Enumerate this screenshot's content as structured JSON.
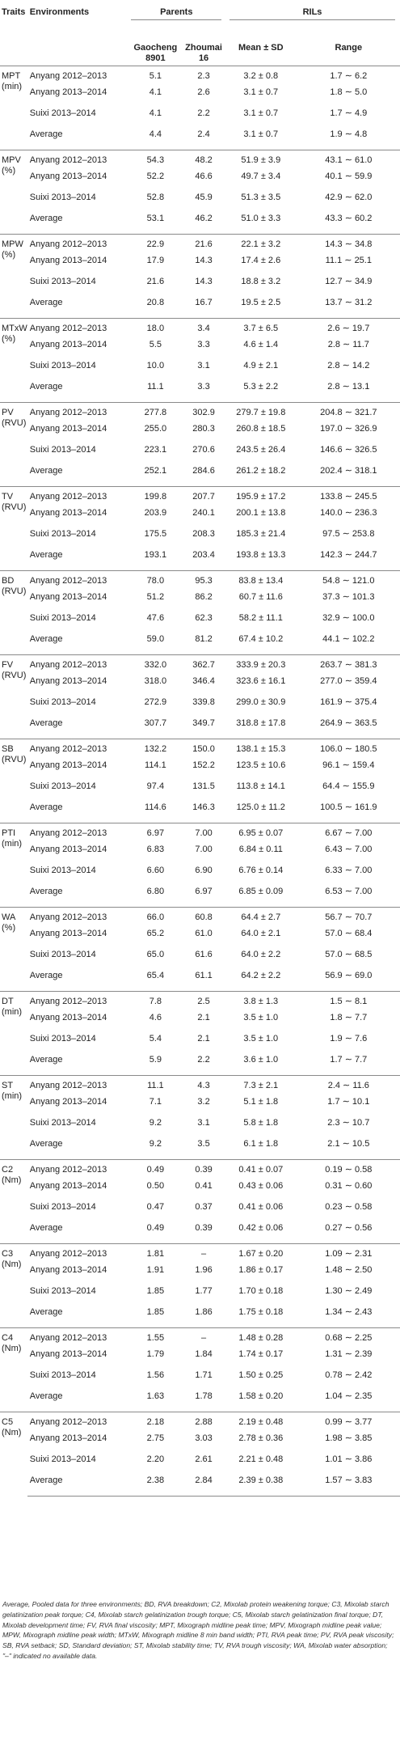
{
  "header": {
    "traits": "Traits",
    "environments": "Environments",
    "parents": "Parents",
    "rils": "RILs",
    "gaocheng": "Gaocheng 8901",
    "zhoumai": "Zhoumai 16",
    "mean_sd": "Mean ± SD",
    "range": "Range"
  },
  "groups": [
    {
      "trait": "MPT (min)",
      "rows": [
        {
          "env": "Anyang 2012–2013",
          "gao": "5.1",
          "zhou": "2.3",
          "mean": "3.2 ± 0.8",
          "range": "1.7 ∼ 6.2"
        },
        {
          "env": "Anyang 2013–2014",
          "gao": "4.1",
          "zhou": "2.6",
          "mean": "3.1 ± 0.7",
          "range": "1.8 ∼ 5.0"
        },
        {
          "env": "Suixi 2013–2014",
          "gao": "4.1",
          "zhou": "2.2",
          "mean": "3.1 ± 0.7",
          "range": "1.7 ∼ 4.9"
        },
        {
          "env": "Average",
          "gao": "4.4",
          "zhou": "2.4",
          "mean": "3.1 ± 0.7",
          "range": "1.9 ∼ 4.8"
        }
      ]
    },
    {
      "trait": "MPV (%)",
      "rows": [
        {
          "env": "Anyang 2012–2013",
          "gao": "54.3",
          "zhou": "48.2",
          "mean": "51.9 ± 3.9",
          "range": "43.1 ∼ 61.0"
        },
        {
          "env": "Anyang 2013–2014",
          "gao": "52.2",
          "zhou": "46.6",
          "mean": "49.7 ± 3.4",
          "range": "40.1 ∼ 59.9"
        },
        {
          "env": "Suixi 2013–2014",
          "gao": "52.8",
          "zhou": "45.9",
          "mean": "51.3 ± 3.5",
          "range": "42.9 ∼ 62.0"
        },
        {
          "env": "Average",
          "gao": "53.1",
          "zhou": "46.2",
          "mean": "51.0 ± 3.3",
          "range": "43.3 ∼ 60.2"
        }
      ]
    },
    {
      "trait": "MPW (%)",
      "rows": [
        {
          "env": "Anyang 2012–2013",
          "gao": "22.9",
          "zhou": "21.6",
          "mean": "22.1 ± 3.2",
          "range": "14.3 ∼ 34.8"
        },
        {
          "env": "Anyang 2013–2014",
          "gao": "17.9",
          "zhou": "14.3",
          "mean": "17.4 ± 2.6",
          "range": "11.1 ∼ 25.1"
        },
        {
          "env": "Suixi 2013–2014",
          "gao": "21.6",
          "zhou": "14.3",
          "mean": "18.8 ± 3.2",
          "range": "12.7 ∼ 34.9"
        },
        {
          "env": "Average",
          "gao": "20.8",
          "zhou": "16.7",
          "mean": "19.5 ± 2.5",
          "range": "13.7 ∼ 31.2"
        }
      ]
    },
    {
      "trait": "MTxW (%)",
      "rows": [
        {
          "env": "Anyang 2012–2013",
          "gao": "18.0",
          "zhou": "3.4",
          "mean": "3.7 ± 6.5",
          "range": "2.6 ∼ 19.7"
        },
        {
          "env": "Anyang 2013–2014",
          "gao": "5.5",
          "zhou": "3.3",
          "mean": "4.6 ± 1.4",
          "range": "2.8 ∼ 11.7"
        },
        {
          "env": "Suixi 2013–2014",
          "gao": "10.0",
          "zhou": "3.1",
          "mean": "4.9 ± 2.1",
          "range": "2.8 ∼ 14.2"
        },
        {
          "env": "Average",
          "gao": "11.1",
          "zhou": "3.3",
          "mean": "5.3 ± 2.2",
          "range": "2.8 ∼ 13.1"
        }
      ]
    },
    {
      "trait": "PV (RVU)",
      "rows": [
        {
          "env": "Anyang 2012–2013",
          "gao": "277.8",
          "zhou": "302.9",
          "mean": "279.7 ± 19.8",
          "range": "204.8 ∼ 321.7"
        },
        {
          "env": "Anyang 2013–2014",
          "gao": "255.0",
          "zhou": "280.3",
          "mean": "260.8 ± 18.5",
          "range": "197.0 ∼ 326.9"
        },
        {
          "env": "Suixi 2013–2014",
          "gao": "223.1",
          "zhou": "270.6",
          "mean": "243.5 ± 26.4",
          "range": "146.6 ∼ 326.5"
        },
        {
          "env": "Average",
          "gao": "252.1",
          "zhou": "284.6",
          "mean": "261.2 ± 18.2",
          "range": "202.4 ∼ 318.1"
        }
      ]
    },
    {
      "trait": "TV (RVU)",
      "rows": [
        {
          "env": "Anyang 2012–2013",
          "gao": "199.8",
          "zhou": "207.7",
          "mean": "195.9 ± 17.2",
          "range": "133.8 ∼ 245.5"
        },
        {
          "env": "Anyang 2013–2014",
          "gao": "203.9",
          "zhou": "240.1",
          "mean": "200.1 ± 13.8",
          "range": "140.0 ∼ 236.3"
        },
        {
          "env": "Suixi 2013–2014",
          "gao": "175.5",
          "zhou": "208.3",
          "mean": "185.3 ± 21.4",
          "range": "97.5 ∼ 253.8"
        },
        {
          "env": "Average",
          "gao": "193.1",
          "zhou": "203.4",
          "mean": "193.8 ± 13.3",
          "range": "142.3 ∼ 244.7"
        }
      ]
    },
    {
      "trait": "BD (RVU)",
      "rows": [
        {
          "env": "Anyang 2012–2013",
          "gao": "78.0",
          "zhou": "95.3",
          "mean": "83.8 ± 13.4",
          "range": "54.8 ∼ 121.0"
        },
        {
          "env": "Anyang 2013–2014",
          "gao": "51.2",
          "zhou": "86.2",
          "mean": "60.7 ± 11.6",
          "range": "37.3 ∼ 101.3"
        },
        {
          "env": "Suixi 2013–2014",
          "gao": "47.6",
          "zhou": "62.3",
          "mean": "58.2 ± 11.1",
          "range": "32.9 ∼ 100.0"
        },
        {
          "env": "Average",
          "gao": "59.0",
          "zhou": "81.2",
          "mean": "67.4 ± 10.2",
          "range": "44.1 ∼ 102.2"
        }
      ]
    },
    {
      "trait": "FV (RVU)",
      "rows": [
        {
          "env": "Anyang 2012–2013",
          "gao": "332.0",
          "zhou": "362.7",
          "mean": "333.9 ± 20.3",
          "range": "263.7 ∼ 381.3"
        },
        {
          "env": "Anyang 2013–2014",
          "gao": "318.0",
          "zhou": "346.4",
          "mean": "323.6 ± 16.1",
          "range": "277.0 ∼ 359.4"
        },
        {
          "env": "Suixi 2013–2014",
          "gao": "272.9",
          "zhou": "339.8",
          "mean": "299.0 ± 30.9",
          "range": "161.9 ∼ 375.4"
        },
        {
          "env": "Average",
          "gao": "307.7",
          "zhou": "349.7",
          "mean": "318.8 ± 17.8",
          "range": "264.9 ∼ 363.5"
        }
      ]
    },
    {
      "trait": "SB (RVU)",
      "rows": [
        {
          "env": "Anyang 2012–2013",
          "gao": "132.2",
          "zhou": "150.0",
          "mean": "138.1 ± 15.3",
          "range": "106.0 ∼ 180.5"
        },
        {
          "env": "Anyang 2013–2014",
          "gao": "114.1",
          "zhou": "152.2",
          "mean": "123.5 ± 10.6",
          "range": "96.1 ∼ 159.4"
        },
        {
          "env": "Suixi 2013–2014",
          "gao": "97.4",
          "zhou": "131.5",
          "mean": "113.8 ± 14.1",
          "range": "64.4 ∼ 155.9"
        },
        {
          "env": "Average",
          "gao": "114.6",
          "zhou": "146.3",
          "mean": "125.0 ± 11.2",
          "range": "100.5 ∼ 161.9"
        }
      ]
    },
    {
      "trait": "PTI (min)",
      "rows": [
        {
          "env": "Anyang 2012–2013",
          "gao": "6.97",
          "zhou": "7.00",
          "mean": "6.95 ± 0.07",
          "range": "6.67 ∼ 7.00"
        },
        {
          "env": "Anyang 2013–2014",
          "gao": "6.83",
          "zhou": "7.00",
          "mean": "6.84 ± 0.11",
          "range": "6.43 ∼ 7.00"
        },
        {
          "env": "Suixi 2013–2014",
          "gao": "6.60",
          "zhou": "6.90",
          "mean": "6.76 ± 0.14",
          "range": "6.33 ∼ 7.00"
        },
        {
          "env": "Average",
          "gao": "6.80",
          "zhou": "6.97",
          "mean": "6.85 ± 0.09",
          "range": "6.53 ∼ 7.00"
        }
      ]
    },
    {
      "trait": "WA (%)",
      "rows": [
        {
          "env": "Anyang 2012–2013",
          "gao": "66.0",
          "zhou": "60.8",
          "mean": "64.4 ± 2.7",
          "range": "56.7 ∼ 70.7"
        },
        {
          "env": "Anyang 2013–2014",
          "gao": "65.2",
          "zhou": "61.0",
          "mean": "64.0 ± 2.1",
          "range": "57.0 ∼ 68.4"
        },
        {
          "env": "Suixi 2013–2014",
          "gao": "65.0",
          "zhou": "61.6",
          "mean": "64.0 ± 2.2",
          "range": "57.0 ∼ 68.5"
        },
        {
          "env": "Average",
          "gao": "65.4",
          "zhou": "61.1",
          "mean": "64.2 ± 2.2",
          "range": "56.9 ∼ 69.0"
        }
      ]
    },
    {
      "trait": "DT (min)",
      "rows": [
        {
          "env": "Anyang 2012–2013",
          "gao": "7.8",
          "zhou": "2.5",
          "mean": "3.8 ± 1.3",
          "range": "1.5 ∼ 8.1"
        },
        {
          "env": "Anyang 2013–2014",
          "gao": "4.6",
          "zhou": "2.1",
          "mean": "3.5 ± 1.0",
          "range": "1.8 ∼ 7.7"
        },
        {
          "env": "Suixi 2013–2014",
          "gao": "5.4",
          "zhou": "2.1",
          "mean": "3.5 ± 1.0",
          "range": "1.9 ∼ 7.6"
        },
        {
          "env": "Average",
          "gao": "5.9",
          "zhou": "2.2",
          "mean": "3.6 ± 1.0",
          "range": "1.7 ∼ 7.7"
        }
      ]
    },
    {
      "trait": "ST (min)",
      "rows": [
        {
          "env": "Anyang 2012–2013",
          "gao": "11.1",
          "zhou": "4.3",
          "mean": "7.3 ± 2.1",
          "range": "2.4 ∼ 11.6"
        },
        {
          "env": "Anyang 2013–2014",
          "gao": "7.1",
          "zhou": "3.2",
          "mean": "5.1 ± 1.8",
          "range": "1.7 ∼ 10.1"
        },
        {
          "env": "Suixi 2013–2014",
          "gao": "9.2",
          "zhou": "3.1",
          "mean": "5.8 ± 1.8",
          "range": "2.3 ∼ 10.7"
        },
        {
          "env": "Average",
          "gao": "9.2",
          "zhou": "3.5",
          "mean": "6.1 ± 1.8",
          "range": "2.1 ∼ 10.5"
        }
      ]
    },
    {
      "trait": "C2 (Nm)",
      "rows": [
        {
          "env": "Anyang 2012–2013",
          "gao": "0.49",
          "zhou": "0.39",
          "mean": "0.41 ± 0.07",
          "range": "0.19 ∼ 0.58"
        },
        {
          "env": "Anyang 2013–2014",
          "gao": "0.50",
          "zhou": "0.41",
          "mean": "0.43 ± 0.06",
          "range": "0.31 ∼ 0.60"
        },
        {
          "env": "Suixi 2013–2014",
          "gao": "0.47",
          "zhou": "0.37",
          "mean": "0.41 ± 0.06",
          "range": "0.23 ∼ 0.58"
        },
        {
          "env": "Average",
          "gao": "0.49",
          "zhou": "0.39",
          "mean": "0.42 ± 0.06",
          "range": "0.27 ∼ 0.56"
        }
      ]
    },
    {
      "trait": "C3 (Nm)",
      "rows": [
        {
          "env": "Anyang 2012–2013",
          "gao": "1.81",
          "zhou": "–",
          "mean": "1.67 ± 0.20",
          "range": "1.09 ∼ 2.31"
        },
        {
          "env": "Anyang 2013–2014",
          "gao": "1.91",
          "zhou": "1.96",
          "mean": "1.86 ± 0.17",
          "range": "1.48 ∼ 2.50"
        },
        {
          "env": "Suixi 2013–2014",
          "gao": "1.85",
          "zhou": "1.77",
          "mean": "1.70 ± 0.18",
          "range": "1.30 ∼ 2.49"
        },
        {
          "env": "Average",
          "gao": "1.85",
          "zhou": "1.86",
          "mean": "1.75 ± 0.18",
          "range": "1.34 ∼ 2.43"
        }
      ]
    },
    {
      "trait": "C4 (Nm)",
      "rows": [
        {
          "env": "Anyang 2012–2013",
          "gao": "1.55",
          "zhou": "–",
          "mean": "1.48 ± 0.28",
          "range": "0.68 ∼ 2.25"
        },
        {
          "env": "Anyang 2013–2014",
          "gao": "1.79",
          "zhou": "1.84",
          "mean": "1.74 ± 0.17",
          "range": "1.31 ∼ 2.39"
        },
        {
          "env": "Suixi 2013–2014",
          "gao": "1.56",
          "zhou": "1.71",
          "mean": "1.50 ± 0.25",
          "range": "0.78 ∼ 2.42"
        },
        {
          "env": "Average",
          "gao": "1.63",
          "zhou": "1.78",
          "mean": "1.58 ± 0.20",
          "range": "1.04 ∼ 2.35"
        }
      ]
    },
    {
      "trait": "C5 (Nm)",
      "rows": [
        {
          "env": "Anyang 2012–2013",
          "gao": "2.18",
          "zhou": "2.88",
          "mean": "2.19 ± 0.48",
          "range": "0.99 ∼ 3.77"
        },
        {
          "env": "Anyang 2013–2014",
          "gao": "2.75",
          "zhou": "3.03",
          "mean": "2.78 ± 0.36",
          "range": "1.98 ∼ 3.85"
        },
        {
          "env": "Suixi 2013–2014",
          "gao": "2.20",
          "zhou": "2.61",
          "mean": "2.21 ± 0.48",
          "range": "1.01 ∼ 3.86"
        },
        {
          "env": "Average",
          "gao": "2.38",
          "zhou": "2.84",
          "mean": "2.39 ± 0.38",
          "range": "1.57 ∼ 3.83"
        }
      ]
    }
  ],
  "footnote": "Average, Pooled data for three environments; BD, RVA breakdown; C2, Mixolab protein weakening torque; C3, Mixolab starch gelatinization peak torque; C4, Mixolab starch gelatinization trough torque; C5, Mixolab starch gelatinization final torque; DT, Mixolab development time; FV, RVA final viscosity; MPT, Mixograph midline peak time; MPV, Mixograph midline peak value; MPW, Mixograph midline peak width; MTxW, Mixograph midline 8 min band width; PTI, RVA peak time; PV, RVA peak viscosity; SB, RVA setback; SD, Standard deviation; ST, Mixolab stability time; TV, RVA trough viscosity; WA, Mixolab water absorption; \"–\" indicated no available data."
}
